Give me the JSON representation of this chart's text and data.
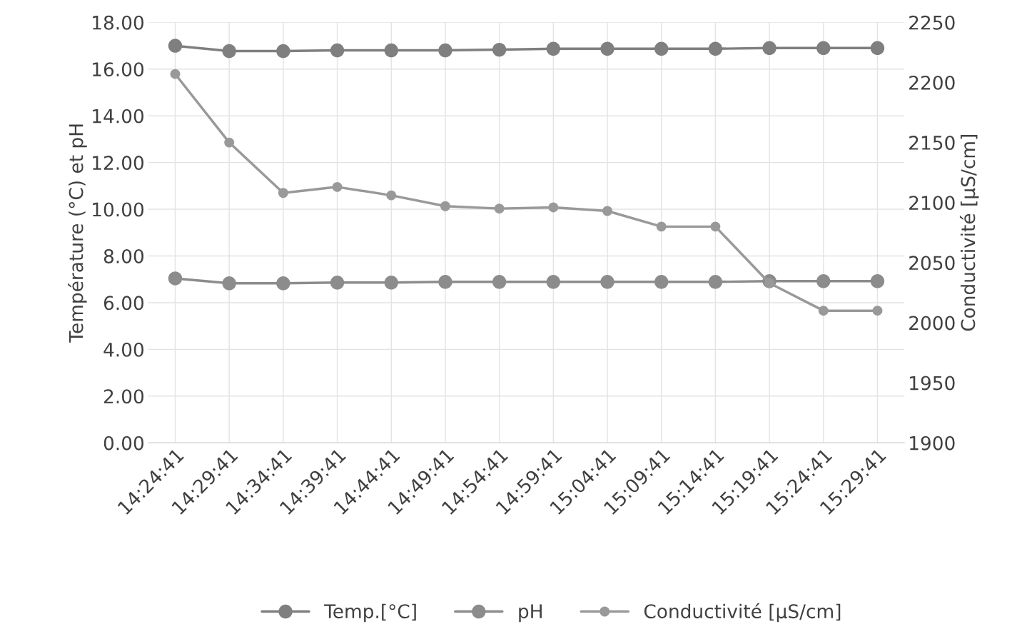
{
  "chart_data": {
    "type": "line",
    "categories": [
      "14:24:41",
      "14:29:41",
      "14:34:41",
      "14:39:41",
      "14:44:41",
      "14:49:41",
      "14:54:41",
      "14:59:41",
      "15:04:41",
      "15:09:41",
      "15:14:41",
      "15:19:41",
      "15:24:41",
      "15:29:41"
    ],
    "ylabel": "Température (°C) et pH",
    "y2label": "Conductivité [µS/cm]",
    "ylim": [
      0,
      18
    ],
    "yticks": [
      {
        "value": 0,
        "label": "0.00"
      },
      {
        "value": 2,
        "label": "2.00"
      },
      {
        "value": 4,
        "label": "4.00"
      },
      {
        "value": 6,
        "label": "6.00"
      },
      {
        "value": 8,
        "label": "8.00"
      },
      {
        "value": 10,
        "label": "10.00"
      },
      {
        "value": 12,
        "label": "12.00"
      },
      {
        "value": 14,
        "label": "14.00"
      },
      {
        "value": 16,
        "label": "16.00"
      },
      {
        "value": 18,
        "label": "18.00"
      }
    ],
    "y2lim": [
      1900,
      2250
    ],
    "y2ticks": [
      1900,
      1950,
      2000,
      2050,
      2100,
      2150,
      2200,
      2250
    ],
    "series": [
      {
        "name": "Temp.[°C]",
        "color": "#7f7f7f",
        "values": [
          17.0,
          16.77,
          16.77,
          16.8,
          16.8,
          16.8,
          16.83,
          16.87,
          16.87,
          16.87,
          16.87,
          16.9,
          16.9,
          16.9
        ]
      },
      {
        "name": "pH",
        "color": "#8c8c8c",
        "values": [
          7.04,
          6.83,
          6.83,
          6.86,
          6.86,
          6.89,
          6.89,
          6.89,
          6.89,
          6.89,
          6.89,
          6.92,
          6.92,
          6.92
        ]
      },
      {
        "name": "Conductivité [µS/cm]",
        "color": "#999999",
        "axis": "y2",
        "values": [
          2207,
          2150,
          2108,
          2113,
          2106,
          2097,
          2095,
          2096,
          2093,
          2080,
          2080,
          2033,
          2010,
          2010
        ]
      }
    ],
    "marker": "circle",
    "line_style": "solid",
    "grid": true,
    "legend": "bottom"
  }
}
